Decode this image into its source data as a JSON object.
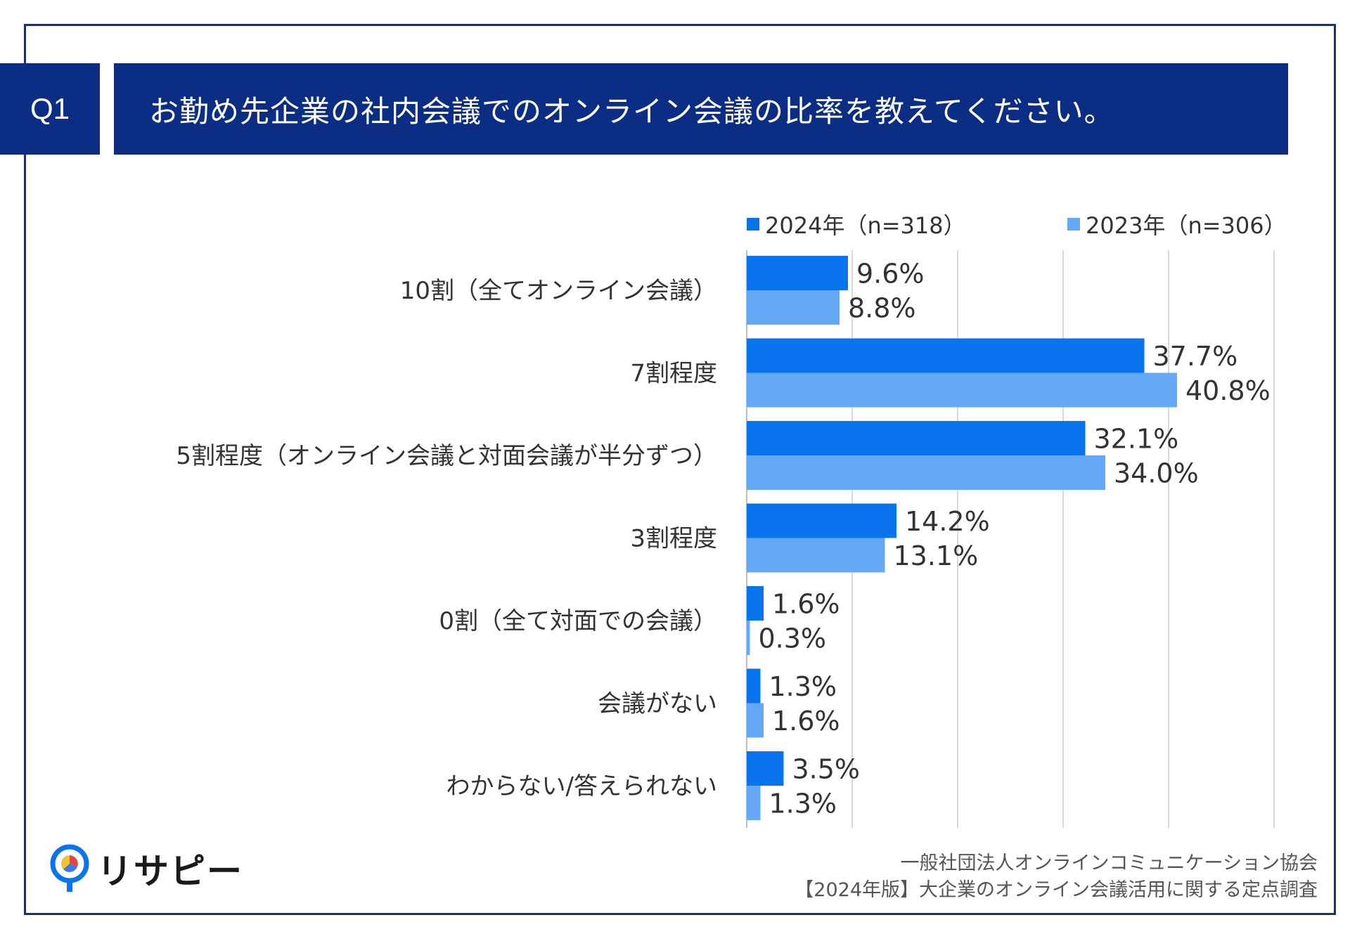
{
  "header": {
    "q_label": "Q1",
    "title": "お勤め先企業の社内会議でのオンライン会議の比率を教えてください。"
  },
  "legend": [
    {
      "label": "2024年（n=318）",
      "color": "#0a74ef"
    },
    {
      "label": "2023年（n=306）",
      "color": "#64a9f5"
    }
  ],
  "chart_data": {
    "type": "bar",
    "orientation": "horizontal",
    "title": "お勤め先企業の社内会議でのオンライン会議の比率を教えてください。",
    "categories": [
      "10割（全てオンライン会議）",
      "7割程度",
      "5割程度（オンライン会議と対面会議が半分ずつ）",
      "3割程度",
      "0割（全て対面での会議）",
      "会議がない",
      "わからない/答えられない"
    ],
    "series": [
      {
        "name": "2024年（n=318）",
        "values": [
          9.6,
          37.7,
          32.1,
          14.2,
          1.6,
          1.3,
          3.5
        ],
        "labels": [
          "9.6%",
          "37.7%",
          "32.1%",
          "14.2%",
          "1.6%",
          "1.3%",
          "3.5%"
        ],
        "color": "#0a74ef"
      },
      {
        "name": "2023年（n=306）",
        "values": [
          8.8,
          40.8,
          34.0,
          13.1,
          0.3,
          1.6,
          1.3
        ],
        "labels": [
          "8.8%",
          "40.8%",
          "34.0%",
          "13.1%",
          "0.3%",
          "1.6%",
          "1.3%"
        ],
        "color": "#64a9f5"
      }
    ],
    "xlim": [
      0,
      50
    ],
    "grid": true,
    "legend_position": "top-right"
  },
  "logo": {
    "text": "リサピー"
  },
  "source": {
    "line1": "一般社団法人オンラインコミュニケーション協会",
    "line2": "【2024年版】大企業のオンライン会議活用に関する定点調査"
  }
}
